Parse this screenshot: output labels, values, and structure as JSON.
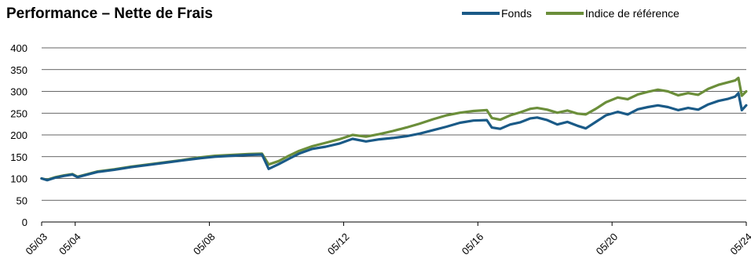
{
  "chart_data": {
    "type": "line",
    "title": "Performance – Nette de Frais",
    "xlabel": "",
    "ylabel": "",
    "ylim": [
      0,
      400
    ],
    "yticks": [
      0,
      50,
      100,
      150,
      200,
      250,
      300,
      350,
      400
    ],
    "xlim": [
      2003.333,
      2024.333
    ],
    "xticks": [
      {
        "label": "05/03",
        "x": 2003.333
      },
      {
        "label": "05/04",
        "x": 2004.333
      },
      {
        "label": "05/08",
        "x": 2008.333
      },
      {
        "label": "05/12",
        "x": 2012.333
      },
      {
        "label": "05/16",
        "x": 2016.333
      },
      {
        "label": "05/20",
        "x": 2020.333
      },
      {
        "label": "05/24",
        "x": 2024.333
      }
    ],
    "grid": "horizontal",
    "legend_position": "top-right",
    "series": [
      {
        "name": "Fonds",
        "color": "#1a5a87",
        "points": [
          [
            2003.33,
            100
          ],
          [
            2003.5,
            96
          ],
          [
            2003.75,
            102
          ],
          [
            2004.0,
            106
          ],
          [
            2004.25,
            109
          ],
          [
            2004.4,
            103
          ],
          [
            2004.75,
            110
          ],
          [
            2005.0,
            115
          ],
          [
            2005.5,
            120
          ],
          [
            2006.0,
            126
          ],
          [
            2006.5,
            131
          ],
          [
            2007.0,
            136
          ],
          [
            2007.5,
            141
          ],
          [
            2008.0,
            146
          ],
          [
            2008.5,
            150
          ],
          [
            2009.0,
            152
          ],
          [
            2009.5,
            154
          ],
          [
            2009.9,
            155
          ],
          [
            2010.1,
            122
          ],
          [
            2010.4,
            133
          ],
          [
            2010.7,
            145
          ],
          [
            2011.0,
            157
          ],
          [
            2011.4,
            168
          ],
          [
            2011.8,
            173
          ],
          [
            2012.2,
            180
          ],
          [
            2012.6,
            191
          ],
          [
            2013.0,
            185
          ],
          [
            2013.4,
            190
          ],
          [
            2013.8,
            193
          ],
          [
            2014.2,
            197
          ],
          [
            2014.6,
            203
          ],
          [
            2015.0,
            211
          ],
          [
            2015.4,
            219
          ],
          [
            2015.8,
            228
          ],
          [
            2016.2,
            233
          ],
          [
            2016.6,
            234
          ],
          [
            2016.75,
            217
          ],
          [
            2017.0,
            214
          ],
          [
            2017.3,
            224
          ],
          [
            2017.6,
            229
          ],
          [
            2017.9,
            238
          ],
          [
            2018.1,
            240
          ],
          [
            2018.4,
            234
          ],
          [
            2018.7,
            224
          ],
          [
            2019.0,
            230
          ],
          [
            2019.3,
            221
          ],
          [
            2019.55,
            215
          ],
          [
            2019.85,
            230
          ],
          [
            2020.15,
            245
          ],
          [
            2020.5,
            253
          ],
          [
            2020.8,
            247
          ],
          [
            2021.1,
            259
          ],
          [
            2021.4,
            264
          ],
          [
            2021.7,
            268
          ],
          [
            2022.0,
            264
          ],
          [
            2022.3,
            257
          ],
          [
            2022.6,
            262
          ],
          [
            2022.9,
            258
          ],
          [
            2023.2,
            270
          ],
          [
            2023.5,
            278
          ],
          [
            2023.8,
            283
          ],
          [
            2024.0,
            288
          ],
          [
            2024.1,
            296
          ],
          [
            2024.2,
            257
          ],
          [
            2024.33,
            268
          ]
        ]
      },
      {
        "name": "Indice de référence",
        "color": "#6b8e3a",
        "points": [
          [
            2003.33,
            100
          ],
          [
            2003.5,
            97
          ],
          [
            2003.75,
            103
          ],
          [
            2004.0,
            107
          ],
          [
            2004.25,
            110
          ],
          [
            2004.4,
            104
          ],
          [
            2004.75,
            111
          ],
          [
            2005.0,
            116
          ],
          [
            2005.5,
            121
          ],
          [
            2006.0,
            127
          ],
          [
            2006.5,
            132
          ],
          [
            2007.0,
            137
          ],
          [
            2007.5,
            142
          ],
          [
            2008.0,
            148
          ],
          [
            2008.5,
            152
          ],
          [
            2009.0,
            154
          ],
          [
            2009.5,
            156
          ],
          [
            2009.9,
            157
          ],
          [
            2010.1,
            132
          ],
          [
            2010.4,
            140
          ],
          [
            2010.7,
            152
          ],
          [
            2011.0,
            163
          ],
          [
            2011.4,
            174
          ],
          [
            2011.8,
            182
          ],
          [
            2012.2,
            190
          ],
          [
            2012.6,
            200
          ],
          [
            2013.0,
            196
          ],
          [
            2013.4,
            202
          ],
          [
            2013.8,
            209
          ],
          [
            2014.2,
            217
          ],
          [
            2014.6,
            226
          ],
          [
            2015.0,
            236
          ],
          [
            2015.4,
            245
          ],
          [
            2015.8,
            251
          ],
          [
            2016.2,
            255
          ],
          [
            2016.6,
            257
          ],
          [
            2016.75,
            239
          ],
          [
            2017.0,
            235
          ],
          [
            2017.3,
            245
          ],
          [
            2017.6,
            252
          ],
          [
            2017.9,
            260
          ],
          [
            2018.1,
            262
          ],
          [
            2018.4,
            258
          ],
          [
            2018.7,
            251
          ],
          [
            2019.0,
            256
          ],
          [
            2019.3,
            249
          ],
          [
            2019.55,
            247
          ],
          [
            2019.85,
            260
          ],
          [
            2020.15,
            275
          ],
          [
            2020.5,
            286
          ],
          [
            2020.8,
            282
          ],
          [
            2021.1,
            293
          ],
          [
            2021.4,
            299
          ],
          [
            2021.7,
            304
          ],
          [
            2022.0,
            300
          ],
          [
            2022.3,
            291
          ],
          [
            2022.6,
            296
          ],
          [
            2022.9,
            292
          ],
          [
            2023.2,
            306
          ],
          [
            2023.5,
            315
          ],
          [
            2023.8,
            321
          ],
          [
            2024.0,
            325
          ],
          [
            2024.1,
            331
          ],
          [
            2024.2,
            290
          ],
          [
            2024.33,
            300
          ]
        ]
      }
    ]
  }
}
